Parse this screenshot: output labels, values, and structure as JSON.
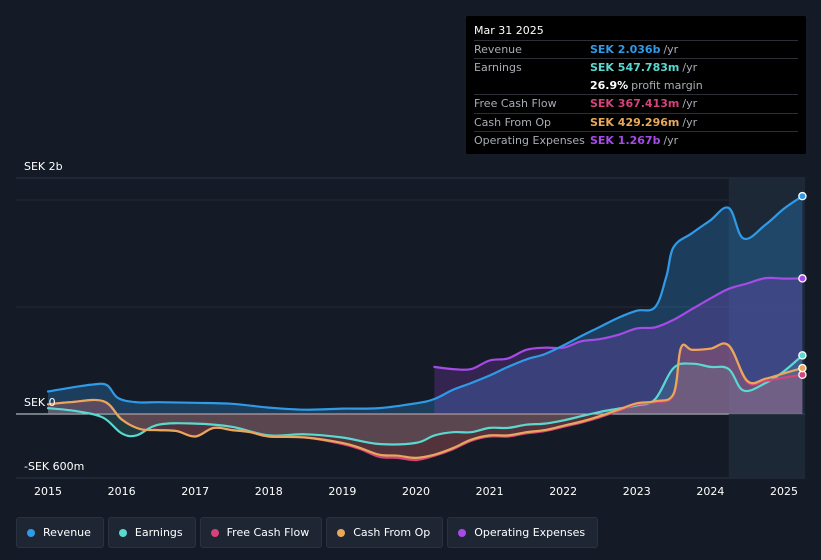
{
  "tooltip": {
    "date": "Mar 31 2025",
    "rows": [
      {
        "label": "Revenue",
        "value": "SEK 2.036b",
        "unit": "/yr",
        "color": "#2f9ae8"
      },
      {
        "label": "Earnings",
        "value": "SEK 547.783m",
        "unit": "/yr",
        "color": "#5ad9d1"
      },
      {
        "label": "",
        "value": "26.9%",
        "unit": "profit margin",
        "color": "#ffffff"
      },
      {
        "label": "Free Cash Flow",
        "value": "SEK 367.413m",
        "unit": "/yr",
        "color": "#d6427a"
      },
      {
        "label": "Cash From Op",
        "value": "SEK 429.296m",
        "unit": "/yr",
        "color": "#e8a85a"
      },
      {
        "label": "Operating Expenses",
        "value": "SEK 1.267b",
        "unit": "/yr",
        "color": "#a64ae8"
      }
    ]
  },
  "legend": [
    {
      "label": "Revenue",
      "color": "#2f9ae8"
    },
    {
      "label": "Earnings",
      "color": "#5ad9d1"
    },
    {
      "label": "Free Cash Flow",
      "color": "#d6427a"
    },
    {
      "label": "Cash From Op",
      "color": "#e8a85a"
    },
    {
      "label": "Operating Expenses",
      "color": "#a64ae8"
    }
  ],
  "chart_data": {
    "type": "area",
    "title": "",
    "xlabel": "",
    "ylabel": "",
    "y_axis_labels": [
      "SEK 2b",
      "SEK 0",
      "-SEK 600m"
    ],
    "x_ticks": [
      "2015",
      "2016",
      "2017",
      "2018",
      "2019",
      "2020",
      "2021",
      "2022",
      "2023",
      "2024",
      "2025"
    ],
    "ylim": [
      -600,
      2200
    ],
    "xlim": [
      2014.55,
      2025.25
    ],
    "forecast_start": 2024.25,
    "series": [
      {
        "name": "Revenue",
        "color": "#2f9ae8",
        "x": [
          2015.0,
          2015.3,
          2015.6,
          2015.8,
          2015.95,
          2016.2,
          2016.5,
          2017.0,
          2017.5,
          2018.0,
          2018.5,
          2019.0,
          2019.5,
          2020.0,
          2020.25,
          2020.5,
          2020.75,
          2021.0,
          2021.25,
          2021.5,
          2021.75,
          2022.0,
          2022.25,
          2022.5,
          2022.75,
          2023.0,
          2023.25,
          2023.4,
          2023.5,
          2023.75,
          2024.0,
          2024.25,
          2024.45,
          2024.75,
          2025.0,
          2025.25
        ],
        "values": [
          210,
          245,
          275,
          270,
          150,
          110,
          110,
          105,
          95,
          60,
          40,
          50,
          55,
          100,
          140,
          225,
          290,
          360,
          440,
          510,
          560,
          640,
          730,
          815,
          900,
          965,
          1000,
          1280,
          1560,
          1690,
          1810,
          1925,
          1640,
          1770,
          1920,
          2036
        ]
      },
      {
        "name": "Earnings",
        "color": "#5ad9d1",
        "x": [
          2015.0,
          2015.4,
          2015.75,
          2016.0,
          2016.2,
          2016.5,
          2017.0,
          2017.5,
          2018.0,
          2018.5,
          2019.0,
          2019.5,
          2020.0,
          2020.25,
          2020.5,
          2020.75,
          2021.0,
          2021.25,
          2021.5,
          2021.75,
          2022.0,
          2022.25,
          2022.5,
          2022.75,
          2023.0,
          2023.25,
          2023.5,
          2023.75,
          2024.0,
          2024.25,
          2024.45,
          2024.75,
          2025.0,
          2025.25
        ],
        "values": [
          55,
          25,
          -35,
          -180,
          -200,
          -100,
          -90,
          -120,
          -200,
          -190,
          -220,
          -280,
          -270,
          -200,
          -170,
          -170,
          -130,
          -130,
          -100,
          -90,
          -60,
          -20,
          20,
          50,
          80,
          140,
          430,
          470,
          440,
          420,
          220,
          290,
          400,
          548
        ]
      },
      {
        "name": "Free Cash Flow",
        "color": "#d6427a",
        "x": [
          2015.0,
          2015.3,
          2015.75,
          2016.0,
          2016.25,
          2016.5,
          2016.75,
          2017.0,
          2017.25,
          2017.5,
          2017.75,
          2018.0,
          2018.5,
          2019.0,
          2019.25,
          2019.5,
          2019.75,
          2020.0,
          2020.25,
          2020.5,
          2020.75,
          2021.0,
          2021.25,
          2021.5,
          2021.75,
          2022.0,
          2022.25,
          2022.5,
          2022.75,
          2023.0,
          2023.25,
          2023.5,
          2023.6,
          2023.75,
          2024.0,
          2024.25,
          2024.5,
          2024.75,
          2025.0,
          2025.25
        ],
        "values": [
          90,
          110,
          120,
          -50,
          -140,
          -150,
          -160,
          -210,
          -130,
          -150,
          -170,
          -210,
          -220,
          -280,
          -330,
          -400,
          -410,
          -430,
          -390,
          -330,
          -250,
          -210,
          -210,
          -180,
          -160,
          -120,
          -80,
          -30,
          30,
          90,
          110,
          180,
          620,
          600,
          610,
          640,
          300,
          310,
          340,
          367
        ]
      },
      {
        "name": "Cash From Op",
        "color": "#e8a85a",
        "x": [
          2015.0,
          2015.3,
          2015.75,
          2016.0,
          2016.25,
          2016.5,
          2016.75,
          2017.0,
          2017.25,
          2017.5,
          2017.75,
          2018.0,
          2018.5,
          2019.0,
          2019.25,
          2019.5,
          2019.75,
          2020.0,
          2020.25,
          2020.5,
          2020.75,
          2021.0,
          2021.25,
          2021.5,
          2021.75,
          2022.0,
          2022.25,
          2022.5,
          2022.75,
          2023.0,
          2023.25,
          2023.5,
          2023.6,
          2023.75,
          2024.0,
          2024.25,
          2024.5,
          2024.75,
          2025.0,
          2025.25
        ],
        "values": [
          90,
          110,
          120,
          -50,
          -140,
          -150,
          -160,
          -210,
          -130,
          -150,
          -170,
          -210,
          -220,
          -270,
          -320,
          -380,
          -390,
          -410,
          -380,
          -320,
          -240,
          -200,
          -200,
          -170,
          -150,
          -110,
          -70,
          -20,
          40,
          100,
          120,
          190,
          620,
          600,
          610,
          640,
          310,
          330,
          380,
          429
        ]
      },
      {
        "name": "Operating Expenses",
        "color": "#a64ae8",
        "x": [
          2020.25,
          2020.5,
          2020.75,
          2021.0,
          2021.25,
          2021.5,
          2021.75,
          2022.0,
          2022.25,
          2022.5,
          2022.75,
          2023.0,
          2023.25,
          2023.5,
          2023.75,
          2024.0,
          2024.25,
          2024.5,
          2024.75,
          2025.0,
          2025.25
        ],
        "values": [
          440,
          420,
          420,
          500,
          520,
          600,
          620,
          620,
          680,
          700,
          740,
          800,
          810,
          880,
          980,
          1080,
          1170,
          1220,
          1270,
          1265,
          1267
        ]
      }
    ]
  }
}
